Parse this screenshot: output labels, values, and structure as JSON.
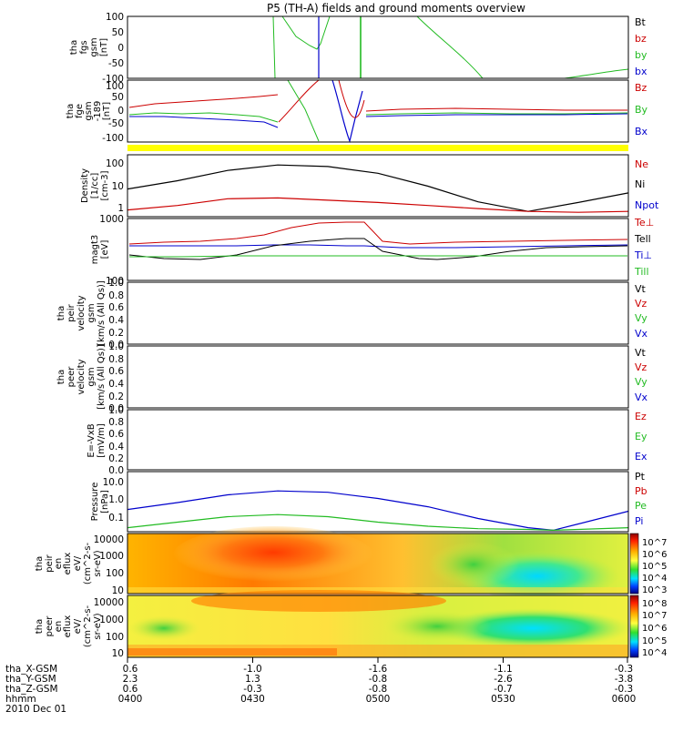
{
  "title": "P5 (TH-A) fields and ground moments overview",
  "date": "2010 Dec 01",
  "colorbar_top": {
    "ticks": [
      "10^7",
      "10^6",
      "10^5",
      "10^4",
      "10^3"
    ]
  },
  "colorbar_bottom": {
    "ticks": [
      "10^8",
      "10^7",
      "10^6",
      "10^5",
      "10^4"
    ]
  },
  "chart_data": [
    {
      "type": "line",
      "name": "panel-fgs",
      "ylabel": [
        "tha",
        "fgs",
        "gsm",
        "[nT]"
      ],
      "ylim": [
        -100,
        100
      ],
      "ticks": [
        "100",
        "50",
        "0",
        "-50",
        "-100"
      ],
      "legend": [
        {
          "label": "Bt",
          "color": "#000000"
        },
        {
          "label": "bz",
          "color": "#cc0000"
        },
        {
          "label": "by",
          "color": "#22bb22"
        },
        {
          "label": "bx",
          "color": "#0000cc"
        }
      ]
    },
    {
      "type": "line",
      "name": "panel-fge",
      "ylabel": [
        "tha",
        "fge",
        "gsm",
        "-189",
        "[nT]"
      ],
      "ylim": [
        -125,
        125
      ],
      "ticks": [
        "100",
        "50",
        "0",
        "-50",
        "-100"
      ],
      "legend": [
        {
          "label": "Bz",
          "color": "#cc0000"
        },
        {
          "label": "By",
          "color": "#22bb22"
        },
        {
          "label": "Bx",
          "color": "#0000cc"
        }
      ]
    },
    {
      "type": "line",
      "name": "panel-density",
      "ylabel": [
        "Density",
        "[1/cc]",
        "[cm-3]"
      ],
      "log": true,
      "ticks": [
        "100",
        "10",
        "1"
      ],
      "legend": [
        {
          "label": "Ne",
          "color": "#cc0000"
        },
        {
          "label": "Ni",
          "color": "#000000"
        },
        {
          "label": "Npot",
          "color": "#0000cc"
        }
      ],
      "series": [
        {
          "name": "Ni",
          "color": "#000000",
          "x": [
            0,
            0.1,
            0.2,
            0.3,
            0.4,
            0.5,
            0.6,
            0.7,
            0.8,
            0.9,
            1.0
          ],
          "y": [
            6,
            14,
            40,
            70,
            60,
            30,
            8,
            1.6,
            0.6,
            1.5,
            4
          ]
        },
        {
          "name": "Ne",
          "color": "#cc0000",
          "x": [
            0,
            0.1,
            0.2,
            0.3,
            0.4,
            0.5,
            0.6,
            0.7,
            0.8,
            0.9,
            1.0
          ],
          "y": [
            0.7,
            1.1,
            2.2,
            2.4,
            1.9,
            1.5,
            1.1,
            0.8,
            0.6,
            0.55,
            0.6
          ]
        }
      ]
    },
    {
      "type": "line",
      "name": "panel-temperature",
      "ylabel": [
        "magt3",
        "[eV]"
      ],
      "ticks": [
        "1000",
        "100"
      ],
      "legend": [
        {
          "label": "Te⊥",
          "color": "#cc0000"
        },
        {
          "label": "Tell",
          "color": "#000000"
        },
        {
          "label": "Ti⊥",
          "color": "#0000cc"
        },
        {
          "label": "Till",
          "color": "#22bb22"
        }
      ]
    },
    {
      "type": "line",
      "name": "panel-peir-velocity",
      "ylabel": [
        "tha",
        "peir",
        "velocity",
        "gsm",
        "[km/s (All Qs)]"
      ],
      "ylim": [
        0,
        1
      ],
      "ticks": [
        "1.0",
        "0.8",
        "0.6",
        "0.4",
        "0.2",
        "0.0"
      ],
      "legend": [
        {
          "label": "Vt",
          "color": "#000000"
        },
        {
          "label": "Vz",
          "color": "#cc0000"
        },
        {
          "label": "Vy",
          "color": "#22bb22"
        },
        {
          "label": "Vx",
          "color": "#0000cc"
        }
      ]
    },
    {
      "type": "line",
      "name": "panel-peer-velocity",
      "ylabel": [
        "tha",
        "peer",
        "velocity",
        "gsm",
        "[km/s (All Qs)]"
      ],
      "ylim": [
        0,
        1
      ],
      "ticks": [
        "1.0",
        "0.8",
        "0.6",
        "0.4",
        "0.2",
        "0.0"
      ],
      "legend": [
        {
          "label": "Vt",
          "color": "#000000"
        },
        {
          "label": "Vz",
          "color": "#cc0000"
        },
        {
          "label": "Vy",
          "color": "#22bb22"
        },
        {
          "label": "Vx",
          "color": "#0000cc"
        }
      ]
    },
    {
      "type": "line",
      "name": "panel-efield",
      "ylabel": [
        "E=-VxB",
        "[mV/m]"
      ],
      "ylim": [
        0,
        1
      ],
      "ticks": [
        "1.0",
        "0.8",
        "0.6",
        "0.4",
        "0.2",
        "0.0"
      ],
      "legend": [
        {
          "label": "Ez",
          "color": "#cc0000"
        },
        {
          "label": "Ey",
          "color": "#22bb22"
        },
        {
          "label": "Ex",
          "color": "#0000cc"
        }
      ]
    },
    {
      "type": "line",
      "name": "panel-pressure",
      "ylabel": [
        "Pressure",
        "[nPa]"
      ],
      "log": true,
      "ticks": [
        "10.0",
        "1.0",
        "0.1"
      ],
      "legend": [
        {
          "label": "Pt",
          "color": "#000000"
        },
        {
          "label": "Pb",
          "color": "#cc0000"
        },
        {
          "label": "Pe",
          "color": "#22bb22"
        },
        {
          "label": "Pi",
          "color": "#0000cc"
        }
      ],
      "series": [
        {
          "name": "Pi",
          "color": "#0000cc",
          "x": [
            0,
            0.1,
            0.2,
            0.3,
            0.4,
            0.5,
            0.6,
            0.7,
            0.8,
            0.85,
            0.9,
            1.0
          ],
          "y": [
            0.25,
            0.6,
            1.6,
            2.6,
            2.2,
            1.0,
            0.35,
            0.08,
            0.025,
            0.018,
            0.04,
            0.2
          ]
        },
        {
          "name": "Pe",
          "color": "#22bb22",
          "x": [
            0,
            0.1,
            0.2,
            0.3,
            0.4,
            0.5,
            0.6,
            0.7,
            0.8,
            0.85,
            0.9,
            1.0
          ],
          "y": [
            0.025,
            0.05,
            0.1,
            0.13,
            0.1,
            0.05,
            0.03,
            0.022,
            0.02,
            0.018,
            0.02,
            0.025
          ]
        }
      ]
    },
    {
      "type": "heatmap",
      "name": "panel-peir-spectrogram",
      "ylabel": [
        "tha",
        "peir",
        "en",
        "eflux",
        "eV/",
        "(cm^2-s-",
        "sr-eV)"
      ],
      "log": true,
      "ticks": [
        "10000",
        "1000",
        "100",
        "10"
      ]
    },
    {
      "type": "heatmap",
      "name": "panel-peer-spectrogram",
      "ylabel": [
        "tha",
        "peer",
        "en",
        "eflux",
        "eV/",
        "(cm^2-s-",
        "sr-eV)"
      ],
      "log": true,
      "ticks": [
        "10000",
        "1000",
        "100",
        "10"
      ]
    }
  ],
  "xaxis": {
    "rows": [
      {
        "label": "tha_X-GSM",
        "values": [
          "0.6",
          "-1.0",
          "-1.6",
          "-1.1",
          "-0.3"
        ]
      },
      {
        "label": "tha_Y-GSM",
        "values": [
          "2.3",
          "1.3",
          "-0.8",
          "-2.6",
          "-3.8"
        ]
      },
      {
        "label": "tha_Z-GSM",
        "values": [
          "0.6",
          "-0.3",
          "-0.8",
          "-0.7",
          "-0.3"
        ]
      },
      {
        "label": "hhmm",
        "values": [
          "0400",
          "0430",
          "0500",
          "0530",
          "0600"
        ]
      }
    ]
  }
}
